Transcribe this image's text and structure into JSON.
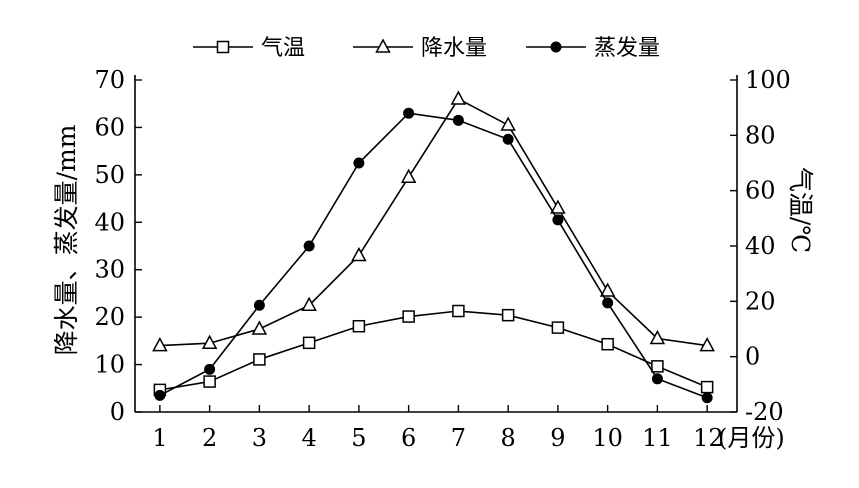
{
  "chart_data": {
    "type": "line",
    "x": [
      1,
      2,
      3,
      4,
      5,
      6,
      7,
      8,
      9,
      10,
      11,
      12
    ],
    "x_tick_labels": [
      "1",
      "2",
      "3",
      "4",
      "5",
      "6",
      "7",
      "8",
      "9",
      "10",
      "11",
      "12"
    ],
    "x_unit": "(月份)",
    "left_axis": {
      "label": "降水量、蒸发量/mm",
      "range": [
        0,
        70
      ],
      "ticks": [
        0,
        10,
        20,
        30,
        40,
        50,
        60,
        70
      ]
    },
    "right_axis": {
      "label": "气温/℃",
      "range": [
        -20,
        100
      ],
      "ticks": [
        -20,
        0,
        20,
        40,
        60,
        80,
        100
      ]
    },
    "series": [
      {
        "name": "气温",
        "axis": "right",
        "marker": "square",
        "values": [
          -12,
          -9,
          -1,
          5,
          11,
          14.5,
          16.5,
          15,
          10.5,
          4.5,
          -3.5,
          -11
        ]
      },
      {
        "name": "降水量",
        "axis": "left",
        "marker": "triangle",
        "values": [
          14,
          14.5,
          17.5,
          22.5,
          33,
          49.5,
          66,
          60.5,
          43,
          25.5,
          15.5,
          14
        ]
      },
      {
        "name": "蒸发量",
        "axis": "left",
        "marker": "dot",
        "values": [
          3.5,
          9,
          22.5,
          35,
          52.5,
          63,
          61.5,
          57.5,
          40.5,
          23,
          7,
          3
        ]
      }
    ],
    "grid": false,
    "legend_position": "top"
  }
}
